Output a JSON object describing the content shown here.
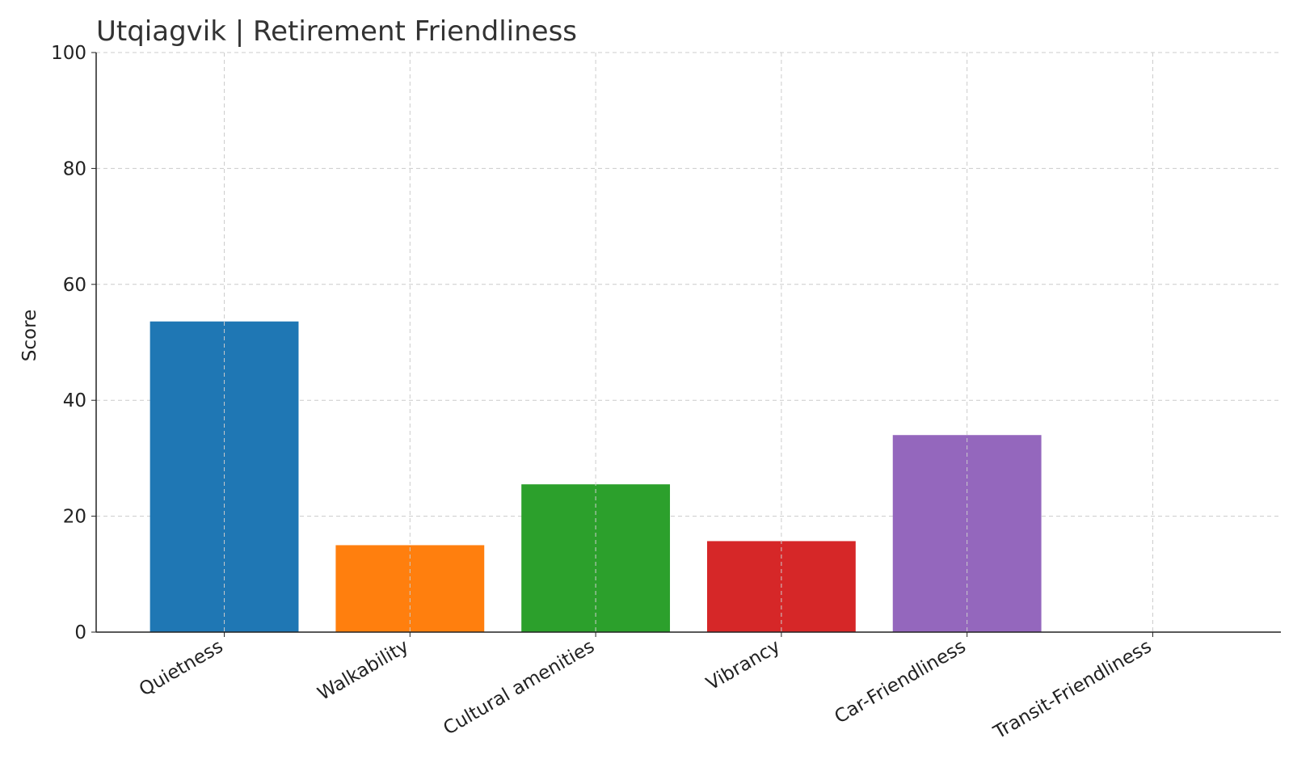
{
  "chart_data": {
    "type": "bar",
    "title": "Utqiagvik | Retirement Friendliness",
    "y_label": "Score",
    "categories": [
      "Quietness",
      "Walkability",
      "Cultural amenities",
      "Vibrancy",
      "Car-Friendliness",
      "Transit-Friendliness"
    ],
    "values": [
      53.6,
      15.0,
      25.5,
      15.7,
      34.0,
      0
    ],
    "colors": [
      "#1f77b4",
      "#ff7f0e",
      "#2ca02c",
      "#d62728",
      "#9467bd",
      "#8c564b"
    ],
    "ylim": [
      0,
      100
    ],
    "yticks": [
      0,
      20,
      40,
      60,
      80,
      100
    ],
    "grid": true
  }
}
